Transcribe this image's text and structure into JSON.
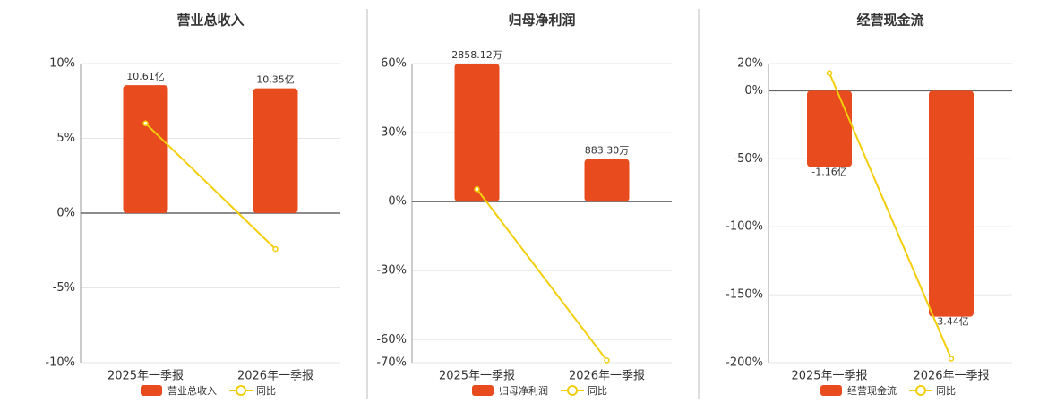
{
  "chart_data": [
    {
      "type": "bar_line",
      "title": "营业总收入",
      "categories": [
        "2025年一季报",
        "2026年一季报"
      ],
      "series": [
        {
          "name": "营业总收入",
          "type": "bar",
          "axis": "y2",
          "color": "#e84c1e",
          "values": [
            10.61,
            10.35
          ],
          "value_labels": [
            "10.61亿",
            "10.35亿"
          ]
        },
        {
          "name": "同比",
          "type": "line",
          "color": "#f2ce0a",
          "values": [
            6.0,
            -2.4
          ]
        }
      ],
      "ylim": [
        -10,
        10
      ],
      "yticks": [
        {
          "value": 10,
          "label": "10%"
        },
        {
          "value": 5,
          "label": "5%"
        },
        {
          "value": 0,
          "label": "0%"
        },
        {
          "value": -5,
          "label": "-5%"
        },
        {
          "value": -10,
          "label": "-10%"
        }
      ],
      "y2lim": [
        -12.4,
        12.4
      ],
      "grid": true
    },
    {
      "type": "bar_line",
      "title": "归母净利润",
      "categories": [
        "2025年一季报",
        "2026年一季报"
      ],
      "series": [
        {
          "name": "归母净利润",
          "type": "bar",
          "axis": "y2",
          "color": "#e84c1e",
          "values": [
            2858.12,
            883.3
          ],
          "value_labels": [
            "2858.12万",
            "883.30万"
          ]
        },
        {
          "name": "同比",
          "type": "line",
          "color": "#f2ce0a",
          "values": [
            5.4,
            -69
          ]
        }
      ],
      "ylim": [
        -70,
        60
      ],
      "yticks": [
        {
          "value": 60,
          "label": "60%"
        },
        {
          "value": 30,
          "label": "30%"
        },
        {
          "value": 0,
          "label": "0%"
        },
        {
          "value": -30,
          "label": "-30%"
        },
        {
          "value": -60,
          "label": "-60%"
        },
        {
          "value": -70,
          "label": "-70%"
        }
      ],
      "y2lim": [
        -3334,
        2858
      ],
      "grid": true
    },
    {
      "type": "bar_line",
      "title": "经营现金流",
      "categories": [
        "2025年一季报",
        "2026年一季报"
      ],
      "series": [
        {
          "name": "经营现金流",
          "type": "bar",
          "axis": "y2",
          "color": "#e84c1e",
          "values": [
            -1.16,
            -3.44
          ],
          "value_labels": [
            "-1.16亿",
            "-3.44亿"
          ]
        },
        {
          "name": "同比",
          "type": "line",
          "color": "#f2ce0a",
          "values": [
            13,
            -197
          ]
        }
      ],
      "ylim": [
        -200,
        20
      ],
      "yticks": [
        {
          "value": 20,
          "label": "20%"
        },
        {
          "value": 0,
          "label": "0%"
        },
        {
          "value": -50,
          "label": "-50%"
        },
        {
          "value": -100,
          "label": "-100%"
        },
        {
          "value": -150,
          "label": "-150%"
        },
        {
          "value": -200,
          "label": "-200%"
        }
      ],
      "y2lim": [
        -4.14,
        0.414
      ],
      "grid": true
    }
  ]
}
